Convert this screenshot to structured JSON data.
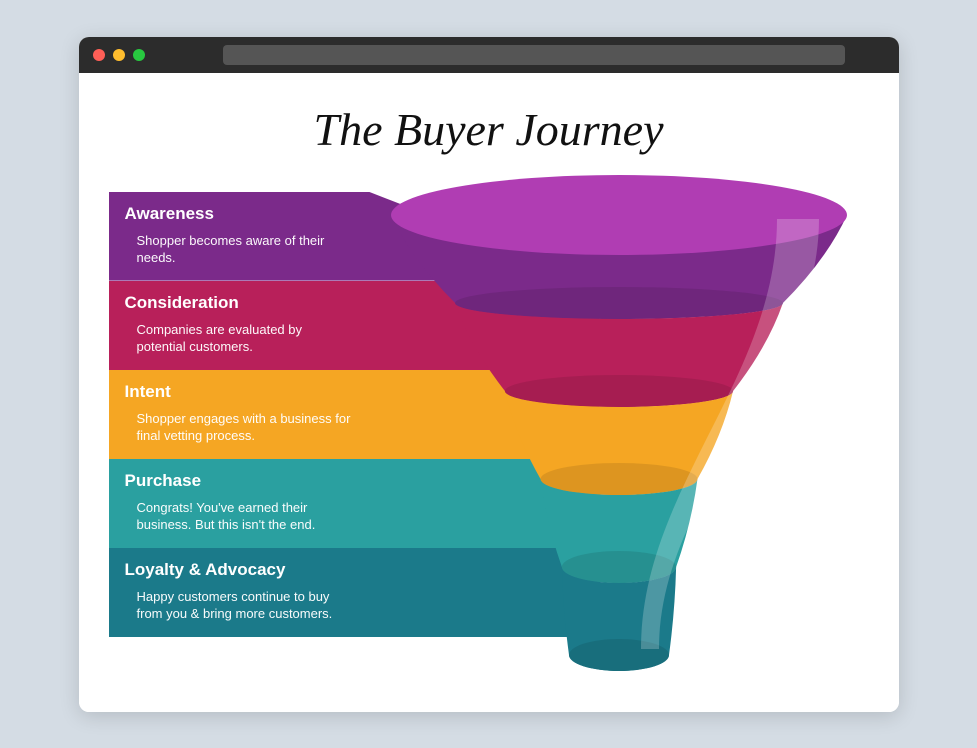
{
  "browser": {
    "dots": [
      "#ff5f57",
      "#ffbd2e",
      "#28c940"
    ],
    "titlebar_bg": "#2c2c2c",
    "address_bg": "#555555"
  },
  "page": {
    "background": "#ffffff",
    "body_background": "#d4dce4",
    "title": "The Buyer Journey",
    "title_fontsize": 46,
    "title_font": "Georgia, serif",
    "title_style": "italic"
  },
  "funnel": {
    "type": "funnel",
    "top_ellipse_color": "#b03db3",
    "highlight_opacity": 0.22,
    "stages": [
      {
        "key": "awareness",
        "label": "Awareness",
        "desc": "Shopper becomes aware of their needs.",
        "color": "#7b2a8a",
        "height_pct": 20
      },
      {
        "key": "consideration",
        "label": "Consideration",
        "desc": "Companies are evaluated by potential customers.",
        "color": "#b8205a",
        "height_pct": 20
      },
      {
        "key": "intent",
        "label": "Intent",
        "desc": "Shopper engages with a business for final vetting process.",
        "color": "#f5a623",
        "height_pct": 20
      },
      {
        "key": "purchase",
        "label": "Purchase",
        "desc": "Congrats! You've earned their business. But this isn't the end.",
        "color": "#2aa0a0",
        "height_pct": 20
      },
      {
        "key": "loyalty",
        "label": "Loyalty & Advocacy",
        "desc": "Happy customers continue to buy from you & bring more customers.",
        "color": "#1b7a8a",
        "height_pct": 20
      }
    ],
    "stage_label_fontsize": 17,
    "stage_desc_fontsize": 13,
    "text_color": "#ffffff"
  }
}
